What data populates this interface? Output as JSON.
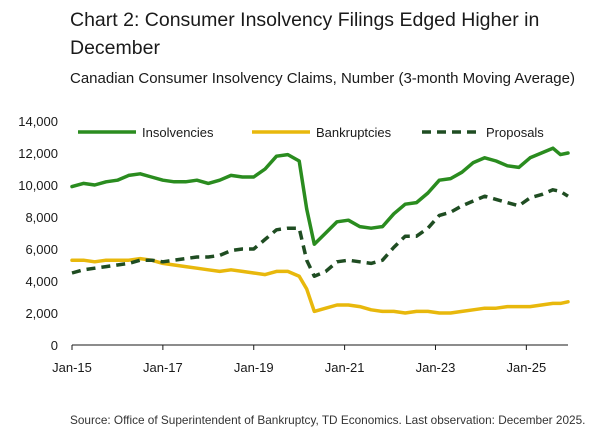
{
  "chart_data": {
    "type": "line",
    "title": "Chart 2: Consumer Insolvency Filings Edged Higher in December",
    "subtitle": "Canadian Consumer Insolvency Claims, Number (3-month Moving Average)",
    "source": "Source: Office of Superintendent of Bankruptcy, TD Economics. Last observation: December 2025.",
    "x_start": "2015-01",
    "x_end": "2025-12",
    "x_ticks": [
      "Jan-15",
      "Jan-17",
      "Jan-19",
      "Jan-21",
      "Jan-23",
      "Jan-25"
    ],
    "y_ticks": [
      "0",
      "2,000",
      "4,000",
      "6,000",
      "8,000",
      "10,000",
      "12,000",
      "14,000"
    ],
    "ylim": [
      0,
      14000
    ],
    "grid": false,
    "legend_position": "top",
    "series": [
      {
        "name": "Insolvencies",
        "color": "#2a8c1f",
        "style": "solid",
        "points": [
          [
            "2015-01",
            9900
          ],
          [
            "2015-04",
            10100
          ],
          [
            "2015-07",
            10000
          ],
          [
            "2015-10",
            10200
          ],
          [
            "2016-01",
            10300
          ],
          [
            "2016-04",
            10600
          ],
          [
            "2016-07",
            10700
          ],
          [
            "2016-10",
            10500
          ],
          [
            "2017-01",
            10300
          ],
          [
            "2017-04",
            10200
          ],
          [
            "2017-07",
            10200
          ],
          [
            "2017-10",
            10300
          ],
          [
            "2018-01",
            10100
          ],
          [
            "2018-04",
            10300
          ],
          [
            "2018-07",
            10600
          ],
          [
            "2018-10",
            10500
          ],
          [
            "2019-01",
            10500
          ],
          [
            "2019-04",
            11000
          ],
          [
            "2019-07",
            11800
          ],
          [
            "2019-10",
            11900
          ],
          [
            "2020-01",
            11500
          ],
          [
            "2020-03",
            8500
          ],
          [
            "2020-05",
            6300
          ],
          [
            "2020-08",
            7000
          ],
          [
            "2020-11",
            7700
          ],
          [
            "2021-02",
            7800
          ],
          [
            "2021-05",
            7400
          ],
          [
            "2021-08",
            7300
          ],
          [
            "2021-11",
            7400
          ],
          [
            "2022-02",
            8200
          ],
          [
            "2022-05",
            8800
          ],
          [
            "2022-08",
            8900
          ],
          [
            "2022-11",
            9500
          ],
          [
            "2023-02",
            10300
          ],
          [
            "2023-05",
            10400
          ],
          [
            "2023-08",
            10800
          ],
          [
            "2023-11",
            11400
          ],
          [
            "2024-02",
            11700
          ],
          [
            "2024-05",
            11500
          ],
          [
            "2024-08",
            11200
          ],
          [
            "2024-11",
            11100
          ],
          [
            "2025-02",
            11700
          ],
          [
            "2025-05",
            12000
          ],
          [
            "2025-08",
            12300
          ],
          [
            "2025-10",
            11900
          ],
          [
            "2025-12",
            12000
          ]
        ]
      },
      {
        "name": "Bankruptcies",
        "color": "#e8b80c",
        "style": "solid",
        "points": [
          [
            "2015-01",
            5300
          ],
          [
            "2015-04",
            5300
          ],
          [
            "2015-07",
            5200
          ],
          [
            "2015-10",
            5300
          ],
          [
            "2016-01",
            5300
          ],
          [
            "2016-04",
            5300
          ],
          [
            "2016-07",
            5400
          ],
          [
            "2016-10",
            5300
          ],
          [
            "2017-01",
            5100
          ],
          [
            "2017-04",
            5000
          ],
          [
            "2017-07",
            4900
          ],
          [
            "2017-10",
            4800
          ],
          [
            "2018-01",
            4700
          ],
          [
            "2018-04",
            4600
          ],
          [
            "2018-07",
            4700
          ],
          [
            "2018-10",
            4600
          ],
          [
            "2019-01",
            4500
          ],
          [
            "2019-04",
            4400
          ],
          [
            "2019-07",
            4600
          ],
          [
            "2019-10",
            4600
          ],
          [
            "2020-01",
            4300
          ],
          [
            "2020-03",
            3500
          ],
          [
            "2020-05",
            2100
          ],
          [
            "2020-08",
            2300
          ],
          [
            "2020-11",
            2500
          ],
          [
            "2021-02",
            2500
          ],
          [
            "2021-05",
            2400
          ],
          [
            "2021-08",
            2200
          ],
          [
            "2021-11",
            2100
          ],
          [
            "2022-02",
            2100
          ],
          [
            "2022-05",
            2000
          ],
          [
            "2022-08",
            2100
          ],
          [
            "2022-11",
            2100
          ],
          [
            "2023-02",
            2000
          ],
          [
            "2023-05",
            2000
          ],
          [
            "2023-08",
            2100
          ],
          [
            "2023-11",
            2200
          ],
          [
            "2024-02",
            2300
          ],
          [
            "2024-05",
            2300
          ],
          [
            "2024-08",
            2400
          ],
          [
            "2024-11",
            2400
          ],
          [
            "2025-02",
            2400
          ],
          [
            "2025-05",
            2500
          ],
          [
            "2025-08",
            2600
          ],
          [
            "2025-10",
            2600
          ],
          [
            "2025-12",
            2700
          ]
        ]
      },
      {
        "name": "Proposals",
        "color": "#1f4d22",
        "style": "dashed",
        "points": [
          [
            "2015-01",
            4500
          ],
          [
            "2015-04",
            4700
          ],
          [
            "2015-07",
            4800
          ],
          [
            "2015-10",
            4900
          ],
          [
            "2016-01",
            5000
          ],
          [
            "2016-04",
            5100
          ],
          [
            "2016-07",
            5300
          ],
          [
            "2016-10",
            5300
          ],
          [
            "2017-01",
            5200
          ],
          [
            "2017-04",
            5300
          ],
          [
            "2017-07",
            5400
          ],
          [
            "2017-10",
            5500
          ],
          [
            "2018-01",
            5500
          ],
          [
            "2018-04",
            5600
          ],
          [
            "2018-07",
            5900
          ],
          [
            "2018-10",
            6000
          ],
          [
            "2019-01",
            6000
          ],
          [
            "2019-04",
            6600
          ],
          [
            "2019-07",
            7200
          ],
          [
            "2019-10",
            7300
          ],
          [
            "2020-01",
            7300
          ],
          [
            "2020-03",
            5300
          ],
          [
            "2020-05",
            4300
          ],
          [
            "2020-08",
            4600
          ],
          [
            "2020-11",
            5200
          ],
          [
            "2021-02",
            5300
          ],
          [
            "2021-05",
            5200
          ],
          [
            "2021-08",
            5100
          ],
          [
            "2021-11",
            5300
          ],
          [
            "2022-02",
            6100
          ],
          [
            "2022-05",
            6800
          ],
          [
            "2022-08",
            6800
          ],
          [
            "2022-11",
            7300
          ],
          [
            "2023-02",
            8100
          ],
          [
            "2023-05",
            8300
          ],
          [
            "2023-08",
            8700
          ],
          [
            "2023-11",
            9000
          ],
          [
            "2024-02",
            9300
          ],
          [
            "2024-05",
            9100
          ],
          [
            "2024-08",
            8900
          ],
          [
            "2024-11",
            8700
          ],
          [
            "2025-02",
            9200
          ],
          [
            "2025-05",
            9400
          ],
          [
            "2025-08",
            9700
          ],
          [
            "2025-10",
            9600
          ],
          [
            "2025-12",
            9300
          ]
        ]
      }
    ]
  }
}
